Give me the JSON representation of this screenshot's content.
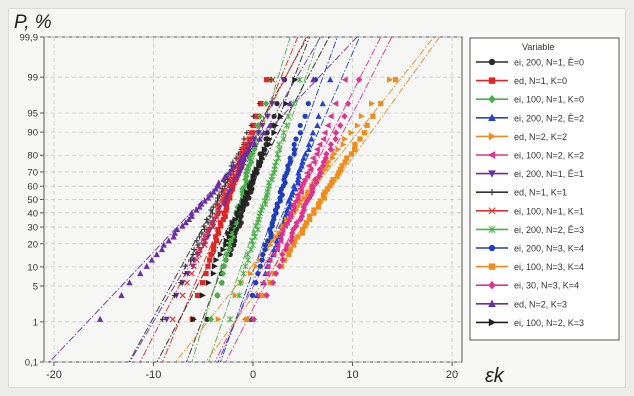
{
  "colors": {
    "background": "#f6f6f4",
    "grid": "#c9c9c9",
    "axis": "#555555",
    "text": "#333333"
  },
  "chart_data": {
    "type": "scatter",
    "title": "",
    "xlabel": "εk",
    "ylabel": "P, %",
    "xlim": [
      -21,
      21
    ],
    "y_scale": "probability",
    "ylim": [
      0.1,
      99.9
    ],
    "x_ticks": [
      -20,
      -10,
      0,
      10,
      20
    ],
    "x_tick_labels": [
      "-20",
      "-10",
      "0",
      "10",
      "20"
    ],
    "y_ticks": [
      0.1,
      1,
      5,
      10,
      20,
      30,
      40,
      50,
      60,
      70,
      80,
      90,
      95,
      99,
      99.9
    ],
    "y_tick_labels": [
      "0,1",
      "1",
      "5",
      "10",
      "20",
      "30",
      "40",
      "50",
      "60",
      "70",
      "80",
      "90",
      "95",
      "99",
      "99,9"
    ],
    "grid": true,
    "legend_title": "Variable",
    "legend_position": "right",
    "series": [
      {
        "name": "ei, 200, N=1, Ê=0",
        "color": "#2b2b2b",
        "marker": "circle",
        "mean": -0.6,
        "sd": 1.7,
        "line_mean": -0.5,
        "line_sd": 2.0
      },
      {
        "name": "ed, N=1, K=0",
        "color": "#e02525",
        "marker": "square",
        "mean": -2.4,
        "sd": 1.7,
        "line_mean": -2.3,
        "line_sd": 2.2
      },
      {
        "name": "ei, 100, N=1, K=0",
        "color": "#49b049",
        "marker": "diamond",
        "mean": -1.2,
        "sd": 1.3,
        "line_mean": -1.2,
        "line_sd": 1.6
      },
      {
        "name": "ei, 200, N=2, Ê=2",
        "color": "#2244cc",
        "marker": "triangle-up",
        "mean": 3.8,
        "sd": 1.8,
        "line_mean": 3.6,
        "line_sd": 2.3
      },
      {
        "name": "ed, N=2, K=2",
        "color": "#f08c1a",
        "marker": "triangle-right",
        "mean": 5.0,
        "sd": 3.8,
        "line_mean": 5.2,
        "line_sd": 4.2
      },
      {
        "name": "ei, 100, N=2, K=2",
        "color": "#e0338c",
        "marker": "triangle-left",
        "mean": 4.4,
        "sd": 2.2,
        "line_mean": 4.5,
        "line_sd": 2.7
      },
      {
        "name": "ei, 200, N=1, Ê=1",
        "color": "#6a2ea5",
        "marker": "triangle-down",
        "mean": -2.8,
        "sd": 2.6,
        "line_mean": -2.8,
        "line_sd": 3.1
      },
      {
        "name": "ed, N=1, K=1",
        "color": "#333333",
        "marker": "plus",
        "mean": -3.6,
        "sd": 2.4,
        "line_mean": -3.5,
        "line_sd": 2.9
      },
      {
        "name": "ei, 100, N=1, K=1",
        "color": "#e23030",
        "marker": "cross",
        "mean": -3.1,
        "sd": 2.2,
        "line_mean": -3.0,
        "line_sd": 2.7
      },
      {
        "name": "ei, 200, N=2, Ê=3",
        "color": "#49b049",
        "marker": "asterisk",
        "mean": 1.2,
        "sd": 1.5,
        "line_mean": 1.1,
        "line_sd": 1.8
      },
      {
        "name": "ei, 200, N=3, K=4",
        "color": "#1f3fb8",
        "marker": "circle",
        "mean": 2.7,
        "sd": 1.5,
        "line_mean": 2.6,
        "line_sd": 1.9
      },
      {
        "name": "ei, 100, N=3, K=4",
        "color": "#f08c1a",
        "marker": "square",
        "mean": 6.9,
        "sd": 3.3,
        "line_mean": 7.0,
        "line_sd": 3.8
      },
      {
        "name": "ei, 30, N=3, K=4",
        "color": "#e0338c",
        "marker": "diamond",
        "mean": 5.5,
        "sd": 2.3,
        "line_mean": 5.6,
        "line_sd": 2.7
      },
      {
        "name": "ed, N=2, K=3",
        "color": "#6a2ea5",
        "marker": "triangle-up",
        "mean": -4.8,
        "sd": 4.7,
        "line_mean": -5.0,
        "line_sd": 5.0
      },
      {
        "name": "ei, 100, N=2, K=3",
        "color": "#222222",
        "marker": "triangle-right",
        "mean": -0.9,
        "sd": 2.3,
        "line_mean": -1.0,
        "line_sd": 2.8
      }
    ]
  }
}
